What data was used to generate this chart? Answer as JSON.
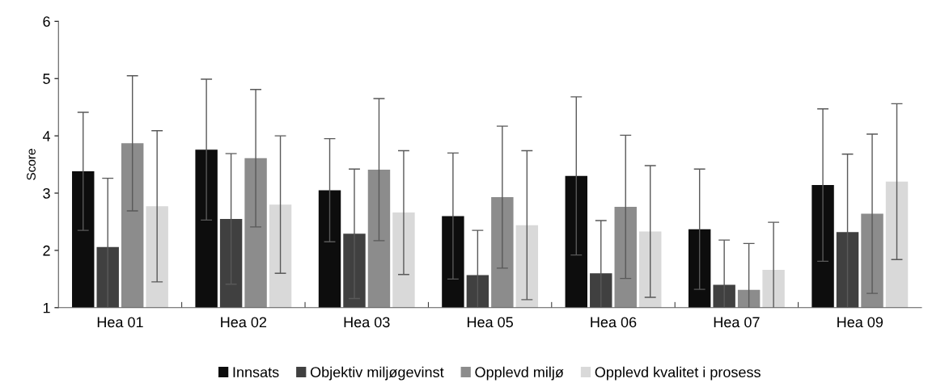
{
  "chart_data": {
    "type": "bar",
    "ylabel": "Score",
    "categories": [
      "Hea 01",
      "Hea 02",
      "Hea 03",
      "Hea 05",
      "Hea 06",
      "Hea 07",
      "Hea 09"
    ],
    "series": [
      {
        "name": "Innsats",
        "color": "#0d0d0d",
        "values": [
          3.38,
          3.76,
          3.05,
          2.6,
          3.3,
          2.37,
          3.14
        ],
        "errors": [
          1.03,
          1.23,
          0.9,
          1.1,
          1.38,
          1.05,
          1.33
        ]
      },
      {
        "name": "Objektiv miljøgevinst",
        "color": "#404040",
        "values": [
          2.06,
          2.55,
          2.29,
          1.57,
          1.6,
          1.4,
          2.32
        ],
        "errors": [
          1.2,
          1.14,
          1.13,
          0.78,
          0.92,
          0.78,
          1.36
        ]
      },
      {
        "name": "Opplevd miljø",
        "color": "#8c8c8c",
        "values": [
          3.87,
          3.61,
          3.41,
          2.93,
          2.76,
          1.31,
          2.64
        ],
        "errors": [
          1.18,
          1.2,
          1.24,
          1.24,
          1.25,
          0.81,
          1.39
        ]
      },
      {
        "name": "Opplevd kvalitet i prosess",
        "color": "#d9d9d9",
        "values": [
          2.77,
          2.8,
          2.66,
          2.44,
          2.33,
          1.66,
          3.2
        ],
        "errors": [
          1.32,
          1.2,
          1.08,
          1.3,
          1.15,
          0.83,
          1.36
        ]
      }
    ],
    "ylim": [
      1,
      6
    ],
    "yticks": [
      1,
      2,
      3,
      4,
      5,
      6
    ],
    "grid": false,
    "legend": "bottom"
  }
}
